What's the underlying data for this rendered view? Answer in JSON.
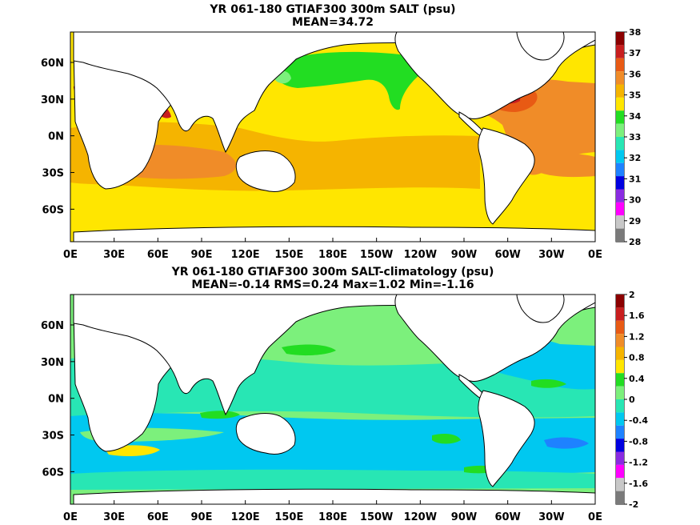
{
  "panels": [
    {
      "title_line1": "YR 061-180 GTIAF300 300m SALT (psu)",
      "title_line2": "MEAN=34.72",
      "lat_ticks": [
        "60N",
        "30N",
        "0N",
        "30S",
        "60S"
      ],
      "lon_ticks": [
        "0E",
        "30E",
        "60E",
        "90E",
        "120E",
        "150E",
        "180E",
        "150W",
        "120W",
        "90W",
        "60W",
        "30W",
        "0E"
      ],
      "colorbar": {
        "labels": [
          "38",
          "37",
          "36",
          "35",
          "34",
          "33",
          "32",
          "31",
          "30",
          "29",
          "28"
        ],
        "colors": [
          "#8b0000",
          "#c81e1e",
          "#e85a14",
          "#f08c28",
          "#f5b400",
          "#ffe600",
          "#22dd22",
          "#7cf07c",
          "#28e6b4",
          "#00c8f0",
          "#1e82ff",
          "#0000e0",
          "#8a2be2",
          "#ff00ff",
          "#c8c8c8",
          "#7a7a7a"
        ]
      }
    },
    {
      "title_line1": "YR 061-180 GTIAF300 300m SALT-climatology (psu)",
      "title_line2": "MEAN=-0.14   RMS=0.24   Max=1.02   Min=-1.16",
      "lat_ticks": [
        "60N",
        "30N",
        "0N",
        "30S",
        "60S"
      ],
      "lon_ticks": [
        "0E",
        "30E",
        "60E",
        "90E",
        "120E",
        "150E",
        "180E",
        "150W",
        "120W",
        "90W",
        "60W",
        "30W",
        "0E"
      ],
      "colorbar": {
        "labels": [
          "2",
          "1.6",
          "1.2",
          "0.8",
          "0.4",
          "0",
          "-0.4",
          "-0.8",
          "-1.2",
          "-1.6",
          "-2"
        ],
        "colors": [
          "#8b0000",
          "#c81e1e",
          "#e85a14",
          "#f08c28",
          "#f5b400",
          "#ffe600",
          "#22dd22",
          "#7cf07c",
          "#28e6b4",
          "#00c8f0",
          "#1e82ff",
          "#0000e0",
          "#8a2be2",
          "#ff00ff",
          "#c8c8c8",
          "#7a7a7a"
        ]
      }
    }
  ]
}
